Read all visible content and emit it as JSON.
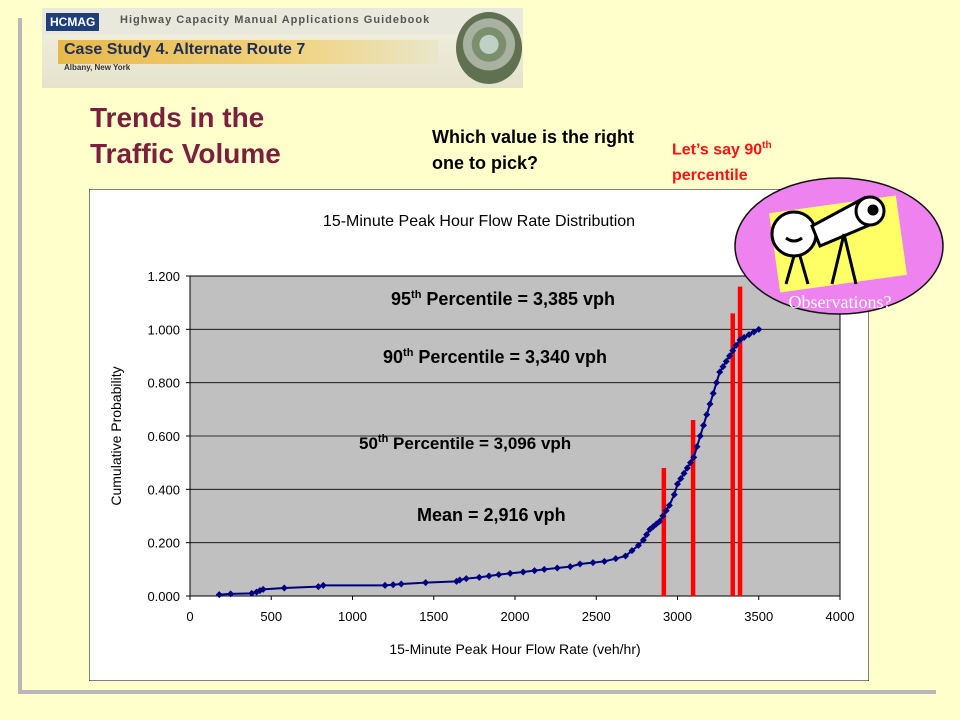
{
  "header": {
    "brand": "HCMAG",
    "subtitle": "Highway Capacity Manual Applications Guidebook",
    "case_study": "Case Study 4. Alternate Route 7",
    "location": "Albany, New York"
  },
  "slide": {
    "title_line1": "Trends in the",
    "title_line2": "Traffic Volume",
    "question": "Which value is the right one to pick?",
    "answer_pre": "Let’s say 90",
    "answer_sup": "th",
    "answer_post": "percentile",
    "observations_label": "Observations?"
  },
  "colors": {
    "background": "#FFFFCC",
    "title": "#7A1F3D",
    "answer": "#FF1111",
    "plot_area": "#C0C0C0",
    "series": "#000080",
    "marker_lines": "#FF0000",
    "bubble": "#EE82EE"
  },
  "chart_data": {
    "type": "scatter",
    "title": "15-Minute Peak Hour Flow Rate Distribution",
    "xlabel": "15-Minute Peak Hour Flow Rate (veh/hr)",
    "ylabel": "Cumulative Probability",
    "xlim": [
      0,
      4000
    ],
    "ylim": [
      0,
      1.2
    ],
    "x_ticks": [
      "0",
      "500",
      "1000",
      "1500",
      "2000",
      "2500",
      "3000",
      "3500",
      "4000"
    ],
    "y_ticks": [
      "0.000",
      "0.200",
      "0.400",
      "0.600",
      "0.800",
      "1.000",
      "1.200"
    ],
    "grid": true,
    "series": [
      {
        "x": [
          180,
          250,
          380,
          410,
          430,
          450,
          580,
          790,
          820,
          1200,
          1250,
          1300,
          1450,
          1640,
          1660,
          1700,
          1780,
          1840,
          1900,
          1970,
          2050,
          2120,
          2180,
          2260,
          2340,
          2400,
          2480,
          2550,
          2620,
          2680,
          2720,
          2760,
          2790,
          2810,
          2830,
          2850,
          2870,
          2890,
          2910,
          2930,
          2950,
          2980,
          3000,
          3020,
          3040,
          3060,
          3080,
          3100,
          3120,
          3140,
          3160,
          3180,
          3200,
          3220,
          3240,
          3260,
          3280,
          3300,
          3320,
          3340,
          3360,
          3385,
          3410,
          3440,
          3470,
          3500
        ],
        "y": [
          0.005,
          0.008,
          0.01,
          0.015,
          0.02,
          0.025,
          0.03,
          0.035,
          0.04,
          0.04,
          0.042,
          0.045,
          0.05,
          0.055,
          0.06,
          0.065,
          0.07,
          0.075,
          0.08,
          0.085,
          0.09,
          0.095,
          0.1,
          0.105,
          0.11,
          0.12,
          0.125,
          0.13,
          0.14,
          0.15,
          0.17,
          0.19,
          0.21,
          0.23,
          0.25,
          0.26,
          0.27,
          0.28,
          0.3,
          0.32,
          0.34,
          0.38,
          0.42,
          0.44,
          0.46,
          0.48,
          0.5,
          0.52,
          0.56,
          0.6,
          0.64,
          0.68,
          0.72,
          0.76,
          0.8,
          0.84,
          0.86,
          0.88,
          0.9,
          0.92,
          0.94,
          0.96,
          0.97,
          0.98,
          0.99,
          1.0
        ]
      }
    ],
    "markers": [
      {
        "label": "Mean = 2,916 vph",
        "x": 2916
      },
      {
        "label_pre": "50",
        "label_sup": "th",
        "label_post": " Percentile = 3,096 vph",
        "x": 3096
      },
      {
        "label_pre": "90",
        "label_sup": "th",
        "label_post": " Percentile = 3,340 vph",
        "x": 3340
      },
      {
        "label_pre": "95",
        "label_sup": "th",
        "label_post": " Percentile = 3,385 vph",
        "x": 3385
      }
    ]
  }
}
